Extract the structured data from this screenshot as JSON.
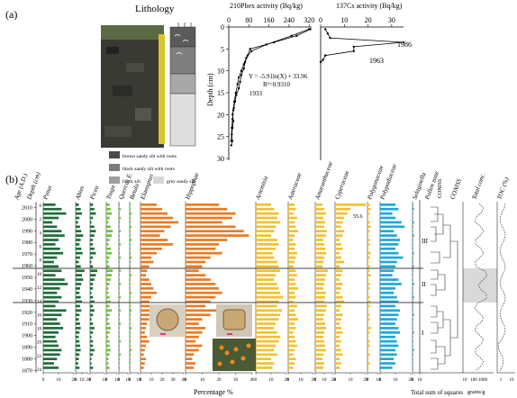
{
  "panel_a": {
    "label": "(a)",
    "lithology_title": "Lithology",
    "legend": [
      {
        "label": "brown sandy silt with roots",
        "color": "#4a4a4a"
      },
      {
        "label": "black sandy silt with roots",
        "color": "#7b7b7b"
      },
      {
        "label": "black silt",
        "color": "#9d9d9d"
      },
      {
        "label": "grey sandy silt",
        "color": "#d6d6d6"
      }
    ],
    "column_layers": [
      {
        "color": "#5b5b5b"
      },
      {
        "color": "#7e7e7e"
      },
      {
        "color": "#a8a8a8"
      },
      {
        "color": "#dedede"
      }
    ]
  },
  "panel_b": {
    "label": "(b)",
    "x_axis_title": "Percentage %",
    "squares_axis_title": "Total sum of squares",
    "total_conc_units": "grains/g",
    "zone_labels": [
      "I",
      "II",
      "III"
    ],
    "coniss": "CONISS",
    "peak_label": "55.6",
    "headers": [
      "Age (A.D.)",
      "Depth (cm)",
      "Pinus",
      "Abies",
      "Picea",
      "Tsuga",
      "Quercus E.",
      "Betula",
      "Elaeagnus",
      "Hippophae",
      "Artemisia",
      "Asteraceae",
      "Amaranthaceae",
      "Cyperaceae",
      "Polygonaceae",
      "Polypodiaceae",
      "Selaginella",
      "Pollen zone",
      "CONISS",
      "Total conc.",
      "TOC (%)"
    ]
  },
  "chart_data": [
    {
      "type": "line",
      "title": "210Pbex activity (Bq/kg)",
      "xlabel": "210Pbex activity (Bq/kg)",
      "ylabel": "Depth (cm)",
      "x_ticks": [
        0,
        80,
        160,
        240,
        320
      ],
      "y_ticks": [
        0,
        5,
        10,
        15,
        20,
        25,
        30
      ],
      "xlim": [
        0,
        330
      ],
      "ylim": [
        30,
        0
      ],
      "annotations": [
        "Y = -5.91ln(X) + 33.96",
        "R²=0.9310",
        "1933"
      ],
      "series": [
        {
          "x": [
            325,
            270,
            180,
            85,
            75,
            65,
            60,
            50,
            45,
            40,
            30,
            25,
            20,
            15,
            18,
            15,
            12,
            14,
            10
          ],
          "y": [
            0.5,
            2,
            3.5,
            5,
            6.5,
            8,
            9.5,
            11,
            12.5,
            14,
            15.5,
            17,
            18.5,
            20,
            21.5,
            23,
            24.5,
            26,
            27
          ]
        },
        {
          "x": [
            320,
            250,
            150,
            90,
            70,
            60,
            50,
            40,
            35,
            28,
            22,
            18,
            15,
            12,
            10
          ],
          "y": [
            0.5,
            2,
            4,
            5.5,
            7,
            8.5,
            10,
            11.5,
            13,
            15,
            17,
            19,
            21,
            23,
            26
          ]
        }
      ]
    },
    {
      "type": "line",
      "title": "137Cs activity (Bq/kg)",
      "xlabel": "137Cs activity (Bq/kg)",
      "x_ticks": [
        0,
        10,
        20,
        30
      ],
      "xlim": [
        0,
        35
      ],
      "ylim": [
        30,
        0
      ],
      "annotations": [
        "1986",
        "1963"
      ],
      "series": [
        {
          "x": [
            2,
            3,
            4,
            35,
            14,
            14,
            2,
            1,
            0
          ],
          "y": [
            0.5,
            1.5,
            2.5,
            3.5,
            4.5,
            5.5,
            6.5,
            7.5,
            8
          ]
        }
      ]
    },
    {
      "type": "bar",
      "title": "Pollen percentage diagram",
      "xlabel": "Percentage %",
      "ylabel": "Age (A.D.)",
      "age_ticks": [
        2010,
        2000,
        1990,
        1980,
        1970,
        1960,
        1950,
        1940,
        1930,
        1920,
        1910,
        1900,
        1890,
        1880,
        1870
      ],
      "depth_ticks": [
        0,
        2,
        4,
        6,
        8,
        10,
        12,
        14,
        16,
        18,
        20,
        22,
        24
      ],
      "zone_boundaries": [
        1965,
        1932
      ],
      "series": [
        {
          "name": "Pinus",
          "color": "#1e6b3a",
          "max": 20,
          "values": [
            8,
            12,
            15,
            10,
            6,
            9,
            12,
            14,
            10,
            8,
            11,
            13,
            9,
            7,
            10,
            12,
            8,
            14,
            16,
            11,
            9,
            12,
            10,
            8,
            15,
            12,
            9,
            11,
            13,
            10,
            8,
            9,
            10,
            12,
            11,
            9,
            7,
            10
          ]
        },
        {
          "name": "Abies",
          "color": "#1e6b3a",
          "max": 20,
          "values": [
            5,
            8,
            10,
            6,
            4,
            7,
            9,
            12,
            8,
            6,
            9,
            11,
            7,
            5,
            8,
            14,
            10,
            12,
            9,
            7,
            6,
            8,
            10,
            7,
            9,
            6,
            5,
            7,
            8,
            6,
            5,
            6,
            7,
            8,
            6,
            5,
            4,
            6
          ]
        },
        {
          "name": "Picea",
          "color": "#1e6b3a",
          "max": 10,
          "values": [
            2,
            3,
            4,
            2,
            1,
            3,
            4,
            3,
            2,
            2,
            3,
            4,
            2,
            1,
            2,
            5,
            4,
            3,
            2,
            2,
            1,
            2,
            3,
            2,
            3,
            2,
            1,
            2,
            3,
            2,
            1,
            2,
            2,
            3,
            2,
            1,
            1,
            2
          ]
        },
        {
          "name": "Tsuga",
          "color": "#6ac23a",
          "max": 10,
          "values": [
            3,
            4,
            5,
            3,
            2,
            4,
            6,
            5,
            3,
            2,
            4,
            5,
            3,
            2,
            3,
            6,
            5,
            4,
            3,
            2,
            2,
            3,
            4,
            3,
            5,
            3,
            2,
            3,
            4,
            3,
            2,
            3,
            3,
            4,
            3,
            2,
            2,
            3
          ]
        },
        {
          "name": "Quercus E.",
          "color": "#6ac23a",
          "max": 10,
          "values": [
            1,
            2,
            1,
            2,
            1,
            1,
            2,
            1,
            1,
            2,
            1,
            1,
            2,
            1,
            1,
            2,
            1,
            1,
            2,
            1,
            1,
            2,
            1,
            1,
            2,
            1,
            1,
            2,
            1,
            1,
            1,
            2,
            1,
            1,
            2,
            1,
            1,
            1
          ]
        },
        {
          "name": "Betula",
          "color": "#6ac23a",
          "max": 10,
          "values": [
            1,
            1,
            2,
            1,
            1,
            2,
            1,
            1,
            2,
            1,
            1,
            1,
            2,
            1,
            1,
            1,
            2,
            1,
            1,
            1,
            2,
            1,
            1,
            1,
            2,
            1,
            1,
            1,
            2,
            1,
            1,
            1,
            1,
            2,
            1,
            1,
            1,
            1
          ]
        },
        {
          "name": "Elaeagnus",
          "color": "#e97b24",
          "max": 40,
          "values": [
            15,
            20,
            25,
            30,
            35,
            28,
            22,
            18,
            25,
            30,
            20,
            15,
            10,
            12,
            8,
            6,
            5,
            8,
            10,
            12,
            15,
            10,
            8,
            12,
            15,
            10,
            8,
            6,
            5,
            4,
            6,
            8,
            5,
            4,
            3,
            5,
            4,
            3
          ]
        },
        {
          "name": "Hippophae",
          "color": "#e97b24",
          "max": 40,
          "values": [
            20,
            25,
            30,
            28,
            22,
            30,
            35,
            38,
            25,
            20,
            18,
            22,
            15,
            12,
            10,
            8,
            12,
            15,
            18,
            20,
            22,
            18,
            15,
            12,
            20,
            15,
            10,
            8,
            12,
            10,
            8,
            6,
            10,
            8,
            5,
            4,
            6,
            5
          ]
        },
        {
          "name": "Artemisia",
          "color": "#f2c12e",
          "max": 20,
          "values": [
            10,
            12,
            15,
            14,
            16,
            13,
            12,
            10,
            14,
            15,
            13,
            11,
            12,
            14,
            15,
            16,
            13,
            12,
            14,
            15,
            16,
            18,
            15,
            14,
            17,
            16,
            15,
            13,
            12,
            14,
            16,
            15,
            13,
            12,
            14,
            10,
            12,
            11
          ]
        },
        {
          "name": "Asteraceae",
          "color": "#f2c12e",
          "max": 20,
          "values": [
            5,
            6,
            4,
            7,
            5,
            6,
            8,
            5,
            4,
            6,
            5,
            7,
            6,
            5,
            4,
            6,
            7,
            5,
            6,
            8,
            5,
            6,
            4,
            7,
            5,
            6,
            8,
            5,
            6,
            4,
            5,
            6,
            7,
            5,
            4,
            6,
            5,
            4
          ]
        },
        {
          "name": "Amaranthaceae",
          "color": "#f2c12e",
          "max": 20,
          "values": [
            8,
            10,
            12,
            9,
            11,
            10,
            13,
            12,
            9,
            10,
            11,
            12,
            10,
            9,
            8,
            14,
            12,
            11,
            10,
            9,
            12,
            11,
            10,
            13,
            12,
            10,
            9,
            11,
            12,
            10,
            9,
            10,
            11,
            12,
            9,
            8,
            10,
            9
          ]
        },
        {
          "name": "Cyperaceae",
          "color": "#f2c12e",
          "max": 20,
          "values": [
            55.6,
            10,
            8,
            6,
            5,
            4,
            6,
            5,
            3,
            4,
            5,
            3,
            4,
            6,
            3,
            5,
            4,
            3,
            5,
            4,
            3,
            5,
            6,
            4,
            3,
            5,
            4,
            3,
            4,
            5,
            3,
            4,
            3,
            4,
            5,
            3,
            4,
            3
          ]
        },
        {
          "name": "Polygonaceae",
          "color": "#f2c12e",
          "max": 10,
          "values": [
            2,
            3,
            2,
            1,
            2,
            3,
            2,
            1,
            2,
            2,
            1,
            3,
            2,
            1,
            2,
            2,
            3,
            1,
            2,
            2,
            1,
            2,
            3,
            2,
            1,
            2,
            2,
            1,
            3,
            2,
            1,
            2,
            2,
            1,
            2,
            1,
            2,
            1
          ]
        },
        {
          "name": "Polypodiaceae",
          "color": "#1fa8d8",
          "max": 20,
          "values": [
            10,
            12,
            8,
            10,
            14,
            16,
            9,
            11,
            13,
            12,
            10,
            12,
            15,
            11,
            10,
            9,
            8,
            12,
            14,
            10,
            9,
            11,
            12,
            10,
            13,
            12,
            11,
            10,
            12,
            13,
            10,
            11,
            12,
            10,
            11,
            9,
            10,
            8
          ]
        },
        {
          "name": "Selaginella",
          "color": "#1fa8d8",
          "max": 10,
          "values": [
            1,
            2,
            1,
            1,
            2,
            1,
            1,
            2,
            1,
            1,
            1,
            2,
            1,
            1,
            2,
            1,
            1,
            1,
            2,
            1,
            1,
            2,
            1,
            1,
            1,
            2,
            1,
            1,
            1,
            2,
            1,
            1,
            1,
            2,
            1,
            1,
            1,
            1
          ]
        }
      ]
    }
  ]
}
